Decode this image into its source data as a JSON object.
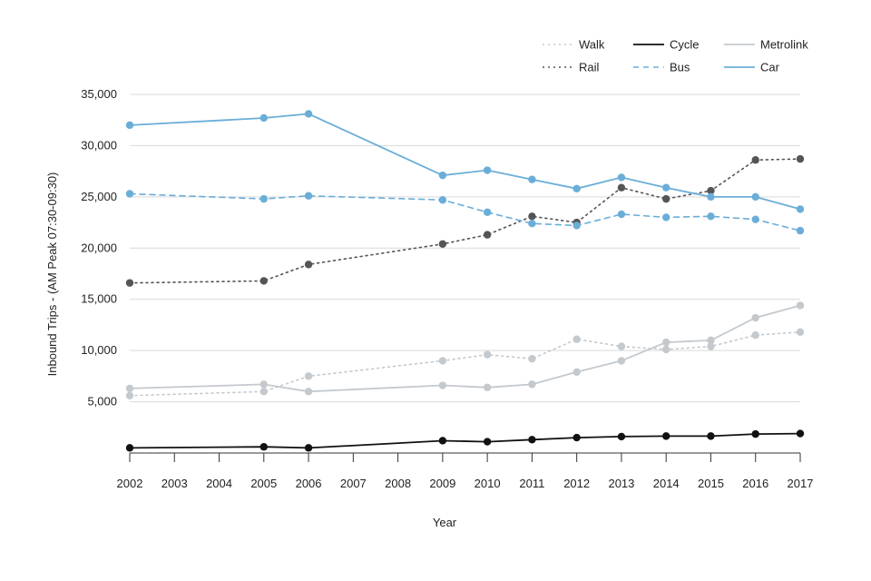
{
  "chart_data": {
    "type": "line",
    "title": "",
    "xlabel": "Year",
    "ylabel": "Inbound Trips - (AM Peak 07:30-09:30)",
    "x": [
      2002,
      2003,
      2004,
      2005,
      2006,
      2007,
      2008,
      2009,
      2010,
      2011,
      2012,
      2013,
      2014,
      2015,
      2016,
      2017
    ],
    "ylim": [
      0,
      35000
    ],
    "yticks": [
      5000,
      10000,
      15000,
      20000,
      25000,
      30000,
      35000
    ],
    "ytick_labels": [
      "5,000",
      "10,000",
      "15,000",
      "20,000",
      "25,000",
      "30,000",
      "35,000"
    ],
    "grid": "horizontal",
    "legend_position": "top-right",
    "series": [
      {
        "name": "Walk",
        "color": "#c4c9ce",
        "style": "dotted",
        "points": [
          [
            2002,
            5600
          ],
          [
            2005,
            6000
          ],
          [
            2006,
            7500
          ],
          [
            2009,
            9000
          ],
          [
            2010,
            9600
          ],
          [
            2011,
            9200
          ],
          [
            2012,
            11100
          ],
          [
            2013,
            10400
          ],
          [
            2014,
            10100
          ],
          [
            2015,
            10400
          ],
          [
            2016,
            11500
          ],
          [
            2017,
            11800
          ]
        ]
      },
      {
        "name": "Rail",
        "color": "#555555",
        "style": "dotted",
        "points": [
          [
            2002,
            16600
          ],
          [
            2005,
            16800
          ],
          [
            2006,
            18400
          ],
          [
            2009,
            20400
          ],
          [
            2010,
            21300
          ],
          [
            2011,
            23100
          ],
          [
            2012,
            22500
          ],
          [
            2013,
            25900
          ],
          [
            2014,
            24800
          ],
          [
            2015,
            25600
          ],
          [
            2016,
            28600
          ],
          [
            2017,
            28700
          ]
        ]
      },
      {
        "name": "Cycle",
        "color": "#111111",
        "style": "solid",
        "points": [
          [
            2002,
            500
          ],
          [
            2005,
            600
          ],
          [
            2006,
            500
          ],
          [
            2009,
            1200
          ],
          [
            2010,
            1100
          ],
          [
            2011,
            1300
          ],
          [
            2012,
            1500
          ],
          [
            2013,
            1600
          ],
          [
            2014,
            1650
          ],
          [
            2015,
            1650
          ],
          [
            2016,
            1850
          ],
          [
            2017,
            1900
          ]
        ]
      },
      {
        "name": "Bus",
        "color": "#6aaed8",
        "style": "dashed",
        "points": [
          [
            2002,
            25300
          ],
          [
            2005,
            24800
          ],
          [
            2006,
            25100
          ],
          [
            2009,
            24700
          ],
          [
            2010,
            23500
          ],
          [
            2011,
            22400
          ],
          [
            2012,
            22200
          ],
          [
            2013,
            23300
          ],
          [
            2014,
            23000
          ],
          [
            2015,
            23100
          ],
          [
            2016,
            22800
          ],
          [
            2017,
            21700
          ]
        ]
      },
      {
        "name": "Metrolink",
        "color": "#c4c9ce",
        "style": "solid",
        "points": [
          [
            2002,
            6300
          ],
          [
            2005,
            6700
          ],
          [
            2006,
            6000
          ],
          [
            2009,
            6600
          ],
          [
            2010,
            6400
          ],
          [
            2011,
            6700
          ],
          [
            2012,
            7900
          ],
          [
            2013,
            9000
          ],
          [
            2014,
            10800
          ],
          [
            2015,
            11000
          ],
          [
            2016,
            13200
          ],
          [
            2017,
            14400
          ]
        ]
      },
      {
        "name": "Car",
        "color": "#6aaed8",
        "style": "solid",
        "points": [
          [
            2002,
            32000
          ],
          [
            2005,
            32700
          ],
          [
            2006,
            33100
          ],
          [
            2009,
            27100
          ],
          [
            2010,
            27600
          ],
          [
            2011,
            26700
          ],
          [
            2012,
            25800
          ],
          [
            2013,
            26900
          ],
          [
            2014,
            25900
          ],
          [
            2015,
            25000
          ],
          [
            2016,
            25000
          ],
          [
            2017,
            23800
          ]
        ]
      }
    ]
  }
}
